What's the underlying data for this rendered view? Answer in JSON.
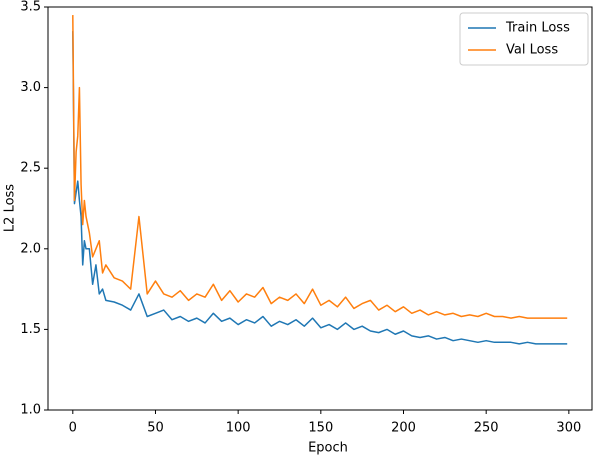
{
  "chart_data": {
    "type": "line",
    "xlabel": "Epoch",
    "ylabel": "L2 Loss",
    "x": [
      0,
      1,
      2,
      3,
      4,
      5,
      6,
      7,
      8,
      10,
      12,
      14,
      16,
      18,
      20,
      25,
      30,
      35,
      40,
      45,
      50,
      55,
      60,
      65,
      70,
      75,
      80,
      85,
      90,
      95,
      100,
      105,
      110,
      115,
      120,
      125,
      130,
      135,
      140,
      145,
      150,
      155,
      160,
      165,
      170,
      175,
      180,
      185,
      190,
      195,
      200,
      205,
      210,
      215,
      220,
      225,
      230,
      235,
      240,
      245,
      250,
      255,
      260,
      265,
      270,
      275,
      280,
      285,
      290,
      295,
      299
    ],
    "series": [
      {
        "name": "Train Loss",
        "color": "#1f77b4",
        "values": [
          3.35,
          2.28,
          2.35,
          2.42,
          2.3,
          2.2,
          1.9,
          2.05,
          2.0,
          2.0,
          1.78,
          1.9,
          1.72,
          1.75,
          1.68,
          1.67,
          1.65,
          1.62,
          1.72,
          1.58,
          1.6,
          1.62,
          1.56,
          1.58,
          1.55,
          1.57,
          1.54,
          1.6,
          1.55,
          1.57,
          1.53,
          1.56,
          1.54,
          1.58,
          1.52,
          1.55,
          1.53,
          1.56,
          1.52,
          1.57,
          1.51,
          1.53,
          1.5,
          1.54,
          1.5,
          1.52,
          1.49,
          1.48,
          1.5,
          1.47,
          1.49,
          1.46,
          1.45,
          1.46,
          1.44,
          1.45,
          1.43,
          1.44,
          1.43,
          1.42,
          1.43,
          1.42,
          1.42,
          1.42,
          1.41,
          1.42,
          1.41,
          1.41,
          1.41,
          1.41,
          1.41
        ]
      },
      {
        "name": "Val Loss",
        "color": "#ff7f0e",
        "values": [
          3.45,
          2.3,
          2.6,
          2.7,
          3.0,
          2.4,
          2.15,
          2.3,
          2.2,
          2.1,
          1.95,
          2.0,
          2.05,
          1.85,
          1.9,
          1.82,
          1.8,
          1.75,
          2.2,
          1.72,
          1.8,
          1.72,
          1.7,
          1.74,
          1.68,
          1.72,
          1.7,
          1.78,
          1.68,
          1.74,
          1.67,
          1.72,
          1.7,
          1.76,
          1.66,
          1.7,
          1.68,
          1.72,
          1.66,
          1.75,
          1.65,
          1.68,
          1.64,
          1.7,
          1.63,
          1.66,
          1.68,
          1.62,
          1.65,
          1.61,
          1.64,
          1.6,
          1.62,
          1.59,
          1.61,
          1.59,
          1.6,
          1.58,
          1.59,
          1.58,
          1.6,
          1.58,
          1.58,
          1.57,
          1.58,
          1.57,
          1.57,
          1.57,
          1.57,
          1.57,
          1.57
        ]
      }
    ],
    "xlim": [
      -15,
      314
    ],
    "xticks": [
      0,
      50,
      100,
      150,
      200,
      250,
      300
    ],
    "ylim": [
      1.0,
      3.5
    ],
    "yticks": [
      {
        "value": 1,
        "label": "1.0"
      },
      1.5,
      {
        "value": 2,
        "label": "2.0"
      },
      2.5,
      {
        "value": 3,
        "label": "3.0"
      },
      3.5
    ],
    "grid": false,
    "legend": "upper right"
  }
}
